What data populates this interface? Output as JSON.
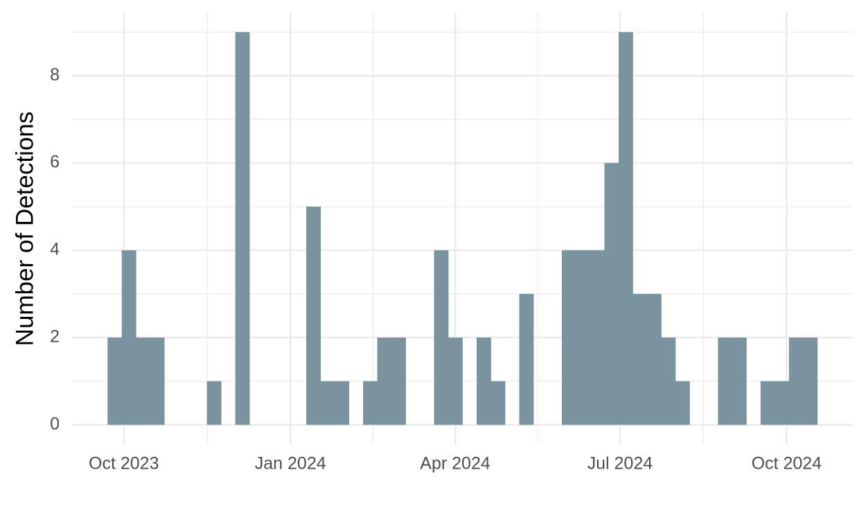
{
  "chart_data": {
    "type": "histogram",
    "y_label": "Number of Detections",
    "bins": [
      19622,
      19629.84,
      19637.68,
      19645.52,
      19653.36,
      19661.2,
      19669.04,
      19676.88,
      19684.72,
      19692.56,
      19700.4,
      19708.24,
      19716.08,
      19723.92,
      19731.76,
      19739.6,
      19747.44,
      19755.28,
      19763.12,
      19770.96,
      19778.8,
      19786.64,
      19794.48,
      19802.32,
      19810.16,
      19818,
      19825.84,
      19833.68,
      19841.52,
      19849.36,
      19857.2,
      19865.04,
      19872.88,
      19880.72,
      19888.56,
      19896.4,
      19904.24,
      19912.08,
      19919.92,
      19927.76,
      19935.6,
      19943.44,
      19951.28,
      19959.12,
      19966.96,
      19974.8,
      19982.64,
      19990.48,
      19998.32,
      20006.16,
      20014
    ],
    "values": [
      2,
      4,
      2,
      2,
      0,
      0,
      0,
      1,
      0,
      9,
      0,
      0,
      0,
      0,
      5,
      1,
      1,
      0,
      1,
      2,
      2,
      0,
      0,
      4,
      2,
      0,
      2,
      1,
      0,
      3,
      0,
      0,
      4,
      4,
      4,
      6,
      9,
      3,
      3,
      2,
      1,
      0,
      0,
      2,
      2,
      0,
      1,
      1,
      2,
      2
    ],
    "color": "#7b939f",
    "xlim": [
      19602.4,
      20033.6
    ],
    "xticks": [
      {
        "value": 19631,
        "label": "Oct 2023"
      },
      {
        "value": 19723,
        "label": "Jan 2024"
      },
      {
        "value": 19814,
        "label": "Apr 2024"
      },
      {
        "value": 19905,
        "label": "Jul 2024"
      },
      {
        "value": 19997,
        "label": "Oct 2024"
      }
    ],
    "xminorticks": [
      19677,
      19768.5,
      19859.5,
      19951
    ],
    "ylim": [
      -0.45,
      9.45
    ],
    "yticks": [
      0,
      2,
      4,
      6,
      8
    ],
    "yminorticks": [
      1,
      3,
      5,
      7,
      9
    ],
    "grid": true
  }
}
